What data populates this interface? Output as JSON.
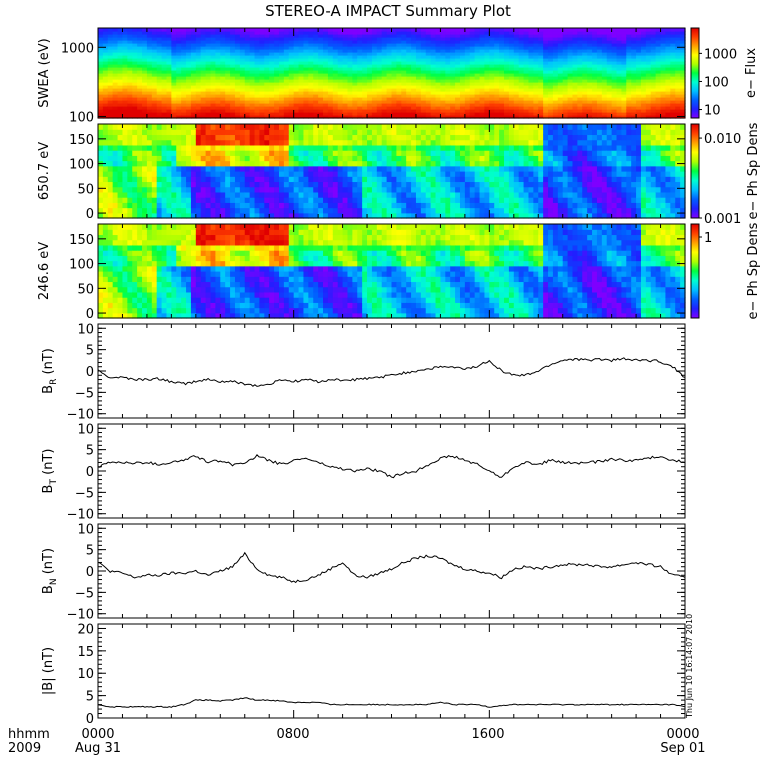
{
  "title": "STEREO-A IMPACT Summary Plot",
  "colors": {
    "line": "#000000",
    "frame": "#000000",
    "colormap": [
      "#7f00ff",
      "#2020ff",
      "#0060ff",
      "#00c0ff",
      "#00ffd0",
      "#00ff40",
      "#b0ff00",
      "#ffff00",
      "#ffa000",
      "#ff4000",
      "#e00000"
    ]
  },
  "footer": {
    "hhmm_label": "hhmm",
    "year_label": "2009",
    "date_start": "Aug 31",
    "date_end": "Sep 01",
    "timestamp": "Thu Jun 10 16:14:07 2010"
  },
  "chart_data": [
    {
      "type": "heatmap",
      "name": "swea-spectrogram",
      "ylabel": "SWEA (eV)",
      "yscale": "log",
      "ylim": [
        95,
        1900
      ],
      "yticks": [
        100,
        1000
      ],
      "ytick_labels": [
        "100",
        "1000"
      ],
      "colorbar": {
        "label": "e− Flux",
        "scale": "log",
        "range": [
          5,
          8000
        ],
        "ticks": [
          10,
          100,
          1000
        ],
        "tick_labels": [
          "10",
          "100",
          "1000"
        ]
      },
      "description_levels": "high flux (red) at low energy ~100 eV, decreasing to blue above ~1500 eV"
    },
    {
      "type": "heatmap",
      "name": "pad-650",
      "ylabel": "650.7 eV",
      "yscale": "linear",
      "ylim": [
        -10,
        180
      ],
      "yticks": [
        0,
        50,
        100,
        150
      ],
      "ytick_labels": [
        "0",
        "50",
        "100",
        "150"
      ],
      "colorbar": {
        "label": "e− Ph Sp Dens",
        "scale": "log",
        "range": [
          0.001,
          0.015
        ],
        "ticks": [
          0.001,
          0.01
        ],
        "tick_labels": [
          "0.001",
          "0.010"
        ]
      }
    },
    {
      "type": "heatmap",
      "name": "pad-246",
      "ylabel": "246.6 eV",
      "yscale": "linear",
      "ylim": [
        -10,
        180
      ],
      "yticks": [
        0,
        50,
        100,
        150
      ],
      "ytick_labels": [
        "0",
        "50",
        "100",
        "150"
      ],
      "colorbar": {
        "label": "e− Ph Sp Dens",
        "scale": "log",
        "range": [
          0.08,
          1.5
        ],
        "ticks": [
          1
        ],
        "tick_labels": [
          "1"
        ]
      }
    },
    {
      "type": "line",
      "name": "br",
      "ylabel": "B_R (nT)",
      "ylabel_main": "B",
      "ylabel_sub": "R",
      "ylabel_unit": " (nT)",
      "ylim": [
        -11,
        11
      ],
      "yticks": [
        -10,
        -5,
        0,
        5,
        10
      ],
      "ytick_labels": [
        "−10",
        "−5",
        "0",
        "5",
        "10"
      ],
      "x": [
        0,
        0.5,
        1,
        1.5,
        2,
        2.5,
        3,
        3.5,
        4,
        4.5,
        5,
        5.5,
        6,
        6.5,
        7,
        7.5,
        8,
        8.5,
        9,
        9.5,
        10,
        10.5,
        11,
        11.5,
        12,
        12.5,
        13,
        13.5,
        14,
        14.5,
        15,
        15.5,
        16,
        16.5,
        17,
        17.5,
        18,
        18.5,
        19,
        19.5,
        20,
        20.5,
        21,
        21.5,
        22,
        22.5,
        23,
        23.5,
        24
      ],
      "values": [
        0,
        -1.5,
        -1.5,
        -2,
        -2,
        -1.8,
        -2.5,
        -3,
        -2.5,
        -2,
        -2.5,
        -2.5,
        -3,
        -3.5,
        -3.2,
        -2,
        -2.5,
        -2,
        -2.5,
        -2,
        -2.2,
        -2,
        -1.8,
        -1.5,
        -1,
        -0.5,
        0,
        0.5,
        1,
        0.8,
        0.5,
        1,
        2.5,
        0,
        -1,
        -1,
        0,
        1.5,
        2.5,
        2.8,
        2.5,
        2.8,
        2.5,
        2.8,
        2.5,
        2.5,
        2.2,
        1,
        -1.5
      ]
    },
    {
      "type": "line",
      "name": "bt",
      "ylabel": "B_T (nT)",
      "ylabel_main": "B",
      "ylabel_sub": "T",
      "ylabel_unit": " (nT)",
      "ylim": [
        -11,
        11
      ],
      "yticks": [
        -10,
        -5,
        0,
        5,
        10
      ],
      "ytick_labels": [
        "−10",
        "−5",
        "0",
        "5",
        "10"
      ],
      "x": [
        0,
        0.5,
        1,
        1.5,
        2,
        2.5,
        3,
        3.5,
        4,
        4.5,
        5,
        5.5,
        6,
        6.5,
        7,
        7.5,
        8,
        8.5,
        9,
        9.5,
        10,
        10.5,
        11,
        11.5,
        12,
        12.5,
        13,
        13.5,
        14,
        14.5,
        15,
        15.5,
        16,
        16.5,
        17,
        17.5,
        18,
        18.5,
        19,
        19.5,
        20,
        20.5,
        21,
        21.5,
        22,
        22.5,
        23,
        23.5,
        24
      ],
      "values": [
        1,
        2,
        2,
        1.8,
        2,
        1.5,
        2,
        2.5,
        3.5,
        2,
        2.5,
        1.5,
        2,
        3.5,
        2.5,
        1.5,
        2.5,
        3,
        2,
        1,
        0.5,
        0,
        0.5,
        0,
        -1.5,
        -0.5,
        0,
        1.5,
        3,
        3.5,
        2.5,
        1.5,
        0,
        -1.5,
        1,
        2,
        1.5,
        2.5,
        2,
        1.8,
        2,
        2.2,
        2.8,
        2.5,
        2.5,
        3,
        3.5,
        2.5,
        2
      ]
    },
    {
      "type": "line",
      "name": "bn",
      "ylabel": "B_N (nT)",
      "ylabel_main": "B",
      "ylabel_sub": "N",
      "ylabel_unit": " (nT)",
      "ylim": [
        -11,
        11
      ],
      "yticks": [
        -10,
        -5,
        0,
        5,
        10
      ],
      "ytick_labels": [
        "−10",
        "−5",
        "0",
        "5",
        "10"
      ],
      "x": [
        0,
        0.5,
        1,
        1.5,
        2,
        2.5,
        3,
        3.5,
        4,
        4.5,
        5,
        5.5,
        6,
        6.5,
        7,
        7.5,
        8,
        8.5,
        9,
        9.5,
        10,
        10.5,
        11,
        11.5,
        12,
        12.5,
        13,
        13.5,
        14,
        14.5,
        15,
        15.5,
        16,
        16.5,
        17,
        17.5,
        18,
        18.5,
        19,
        19.5,
        20,
        20.5,
        21,
        21.5,
        22,
        22.5,
        23,
        23.5,
        24
      ],
      "values": [
        2,
        0,
        -0.5,
        -1.5,
        -1,
        -1,
        -0.5,
        -0.5,
        0,
        -1,
        0,
        1,
        4,
        0.5,
        -1,
        -1.5,
        -2.5,
        -2,
        -1,
        0.5,
        2,
        -1,
        -1.5,
        -0.5,
        0.5,
        2,
        3,
        3.5,
        3,
        1.5,
        0.5,
        0,
        -0.5,
        -1.5,
        0.5,
        1,
        0.5,
        1,
        1.5,
        1.5,
        1.5,
        1,
        1,
        1.5,
        2,
        1.5,
        1,
        -1,
        -1.5
      ]
    },
    {
      "type": "line",
      "name": "bmag",
      "ylabel": "|B| (nT)",
      "ylabel_main": "|B|",
      "ylabel_sub": "",
      "ylabel_unit": " (nT)",
      "ylim": [
        0,
        21
      ],
      "yticks": [
        0,
        5,
        10,
        15,
        20
      ],
      "ytick_labels": [
        "0",
        "5",
        "10",
        "15",
        "20"
      ],
      "x": [
        0,
        0.5,
        1,
        1.5,
        2,
        2.5,
        3,
        3.5,
        4,
        4.5,
        5,
        5.5,
        6,
        6.5,
        7,
        7.5,
        8,
        8.5,
        9,
        9.5,
        10,
        10.5,
        11,
        11.5,
        12,
        12.5,
        13,
        13.5,
        14,
        14.5,
        15,
        15.5,
        16,
        16.5,
        17,
        17.5,
        18,
        18.5,
        19,
        19.5,
        20,
        20.5,
        21,
        21.5,
        22,
        22.5,
        23,
        23.5,
        24
      ],
      "values": [
        3,
        2.5,
        2.5,
        2.5,
        2.5,
        2.5,
        2.5,
        3,
        4,
        4,
        3.8,
        4,
        4.5,
        4,
        4,
        3.8,
        3.5,
        3.5,
        3.5,
        3,
        3,
        3,
        3,
        3,
        3,
        3,
        3,
        3,
        3.5,
        3,
        3,
        3,
        2.5,
        2.8,
        3,
        3,
        3,
        3,
        3,
        3,
        3,
        3,
        3,
        3,
        3,
        3,
        3,
        3,
        2.5
      ]
    }
  ],
  "xaxis": {
    "range_hours": [
      0,
      24
    ],
    "ticks_hours": [
      0,
      8,
      16,
      24
    ],
    "tick_labels": [
      "0000",
      "0800",
      "1600",
      "0000"
    ]
  }
}
